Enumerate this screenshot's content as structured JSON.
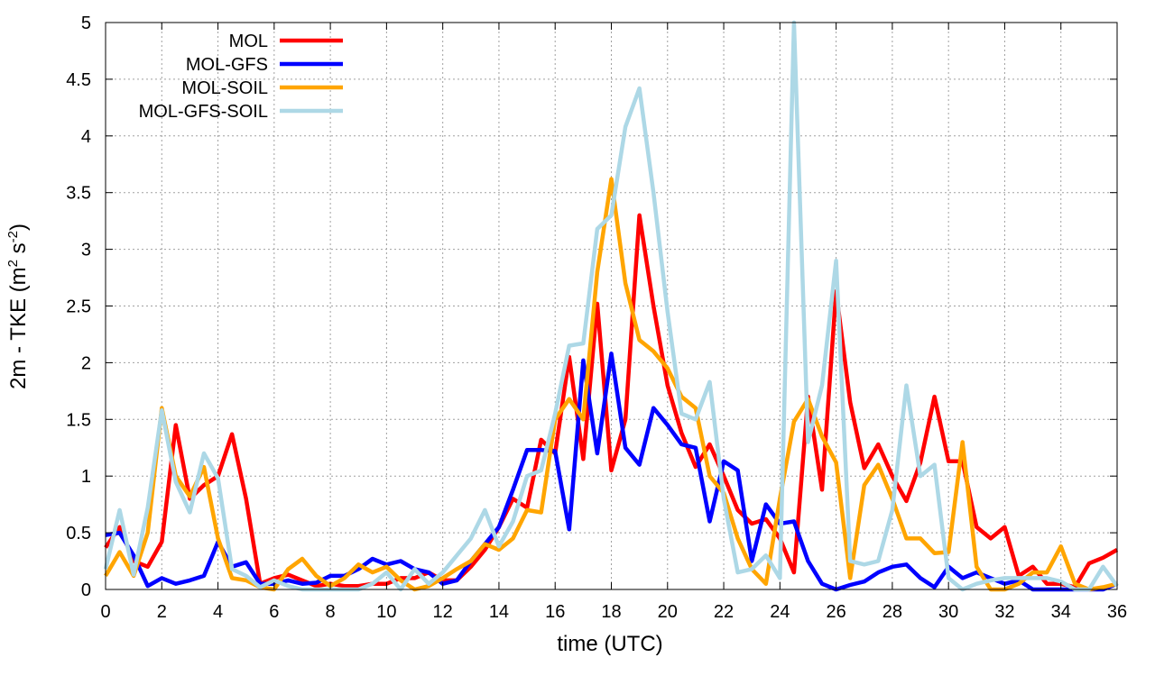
{
  "chart_data": {
    "type": "line",
    "title": "",
    "xlabel": "time (UTC)",
    "ylabel": {
      "main": "2m - TKE (m",
      "sup1": "2",
      "mid": " s",
      "sup2": "-2",
      "end": ")"
    },
    "xlim": [
      0,
      36
    ],
    "ylim": [
      0,
      5
    ],
    "xticks": [
      "0",
      "2",
      "4",
      "6",
      "8",
      "10",
      "12",
      "14",
      "16",
      "18",
      "20",
      "22",
      "24",
      "26",
      "28",
      "30",
      "32",
      "34",
      "36"
    ],
    "yticks": [
      "0",
      "0.5",
      "1",
      "1.5",
      "2",
      "2.5",
      "3",
      "3.5",
      "4",
      "4.5",
      "5"
    ],
    "grid": true,
    "legend_position": "top-left",
    "x": [
      0,
      0.5,
      1,
      1.5,
      2,
      2.5,
      3,
      3.5,
      4,
      4.5,
      5,
      5.5,
      6,
      6.5,
      7,
      7.5,
      8,
      8.5,
      9,
      9.5,
      10,
      10.5,
      11,
      11.5,
      12,
      12.5,
      13,
      13.5,
      14,
      14.5,
      15,
      15.5,
      16,
      16.5,
      17,
      17.5,
      18,
      18.5,
      19,
      19.5,
      20,
      20.5,
      21,
      21.5,
      22,
      22.5,
      23,
      23.5,
      24,
      24.5,
      25,
      25.5,
      26,
      26.5,
      27,
      27.5,
      28,
      28.5,
      29,
      29.5,
      30,
      30.5,
      31,
      31.5,
      32,
      32.5,
      33,
      33.5,
      34,
      34.5,
      35,
      35.5,
      36
    ],
    "series": [
      {
        "name": "MOL",
        "color": "#ff0000",
        "values": [
          0.37,
          0.55,
          0.25,
          0.2,
          0.42,
          1.45,
          0.8,
          0.92,
          1.0,
          1.37,
          0.8,
          0.05,
          0.1,
          0.13,
          0.08,
          0.03,
          0.05,
          0.03,
          0.03,
          0.05,
          0.05,
          0.1,
          0.1,
          0.15,
          0.08,
          0.08,
          0.2,
          0.35,
          0.55,
          0.8,
          0.72,
          1.32,
          1.2,
          2.05,
          1.15,
          2.52,
          1.05,
          1.5,
          3.3,
          2.5,
          1.8,
          1.38,
          1.08,
          1.28,
          1.0,
          0.7,
          0.58,
          0.62,
          0.45,
          0.15,
          1.7,
          0.88,
          2.63,
          1.65,
          1.07,
          1.28,
          1.0,
          0.78,
          1.12,
          1.7,
          1.13,
          1.13,
          0.55,
          0.45,
          0.55,
          0.12,
          0.2,
          0.05,
          0.05,
          0.02,
          0.23,
          0.28,
          0.35
        ]
      },
      {
        "name": "MOL-GFS",
        "color": "#0000ff",
        "values": [
          0.48,
          0.5,
          0.3,
          0.03,
          0.1,
          0.05,
          0.08,
          0.12,
          0.42,
          0.2,
          0.24,
          0.05,
          0.05,
          0.08,
          0.05,
          0.06,
          0.12,
          0.12,
          0.18,
          0.27,
          0.22,
          0.25,
          0.18,
          0.15,
          0.05,
          0.08,
          0.25,
          0.4,
          0.55,
          0.88,
          1.23,
          1.23,
          1.22,
          0.53,
          2.02,
          1.2,
          2.08,
          1.25,
          1.1,
          1.6,
          1.45,
          1.28,
          1.25,
          0.6,
          1.13,
          1.05,
          0.25,
          0.75,
          0.58,
          0.6,
          0.25,
          0.05,
          0.0,
          0.04,
          0.07,
          0.15,
          0.2,
          0.22,
          0.1,
          0.02,
          0.2,
          0.1,
          0.15,
          0.1,
          0.05,
          0.08,
          0.0,
          0.0,
          0.0,
          0.0,
          0.0,
          0.0,
          0.05
        ]
      },
      {
        "name": "MOL-SOIL",
        "color": "#ffa500",
        "values": [
          0.12,
          0.33,
          0.12,
          0.5,
          1.6,
          1.0,
          0.82,
          1.08,
          0.45,
          0.1,
          0.08,
          0.02,
          0.0,
          0.18,
          0.27,
          0.12,
          0.03,
          0.1,
          0.22,
          0.15,
          0.2,
          0.08,
          0.0,
          0.03,
          0.1,
          0.18,
          0.25,
          0.4,
          0.35,
          0.45,
          0.7,
          0.68,
          1.5,
          1.68,
          1.5,
          2.8,
          3.62,
          2.7,
          2.2,
          2.1,
          1.95,
          1.7,
          1.6,
          1.0,
          0.85,
          0.45,
          0.18,
          0.05,
          0.8,
          1.48,
          1.68,
          1.35,
          1.12,
          0.1,
          0.92,
          1.1,
          0.8,
          0.45,
          0.45,
          0.32,
          0.33,
          1.3,
          0.2,
          0.0,
          0.0,
          0.05,
          0.15,
          0.15,
          0.38,
          0.05,
          0.0,
          0.02,
          0.05
        ]
      },
      {
        "name": "MOL-GFS-SOIL",
        "color": "#add8e6",
        "values": [
          0.18,
          0.7,
          0.13,
          0.72,
          1.58,
          0.95,
          0.68,
          1.2,
          0.98,
          0.18,
          0.12,
          0.02,
          0.08,
          0.03,
          0.0,
          0.0,
          0.0,
          0.0,
          0.0,
          0.05,
          0.15,
          0.0,
          0.18,
          0.05,
          0.15,
          0.3,
          0.45,
          0.7,
          0.38,
          0.6,
          1.0,
          1.05,
          1.55,
          2.15,
          2.17,
          3.18,
          3.3,
          4.08,
          4.42,
          3.5,
          2.45,
          1.55,
          1.5,
          1.83,
          0.8,
          0.15,
          0.18,
          0.3,
          0.1,
          5.0,
          1.3,
          1.8,
          2.9,
          0.25,
          0.22,
          0.25,
          0.7,
          1.8,
          1.0,
          1.1,
          0.1,
          0.0,
          0.05,
          0.08,
          0.1,
          0.1,
          0.1,
          0.1,
          0.07,
          0.0,
          0.0,
          0.2,
          0.03
        ]
      }
    ]
  }
}
